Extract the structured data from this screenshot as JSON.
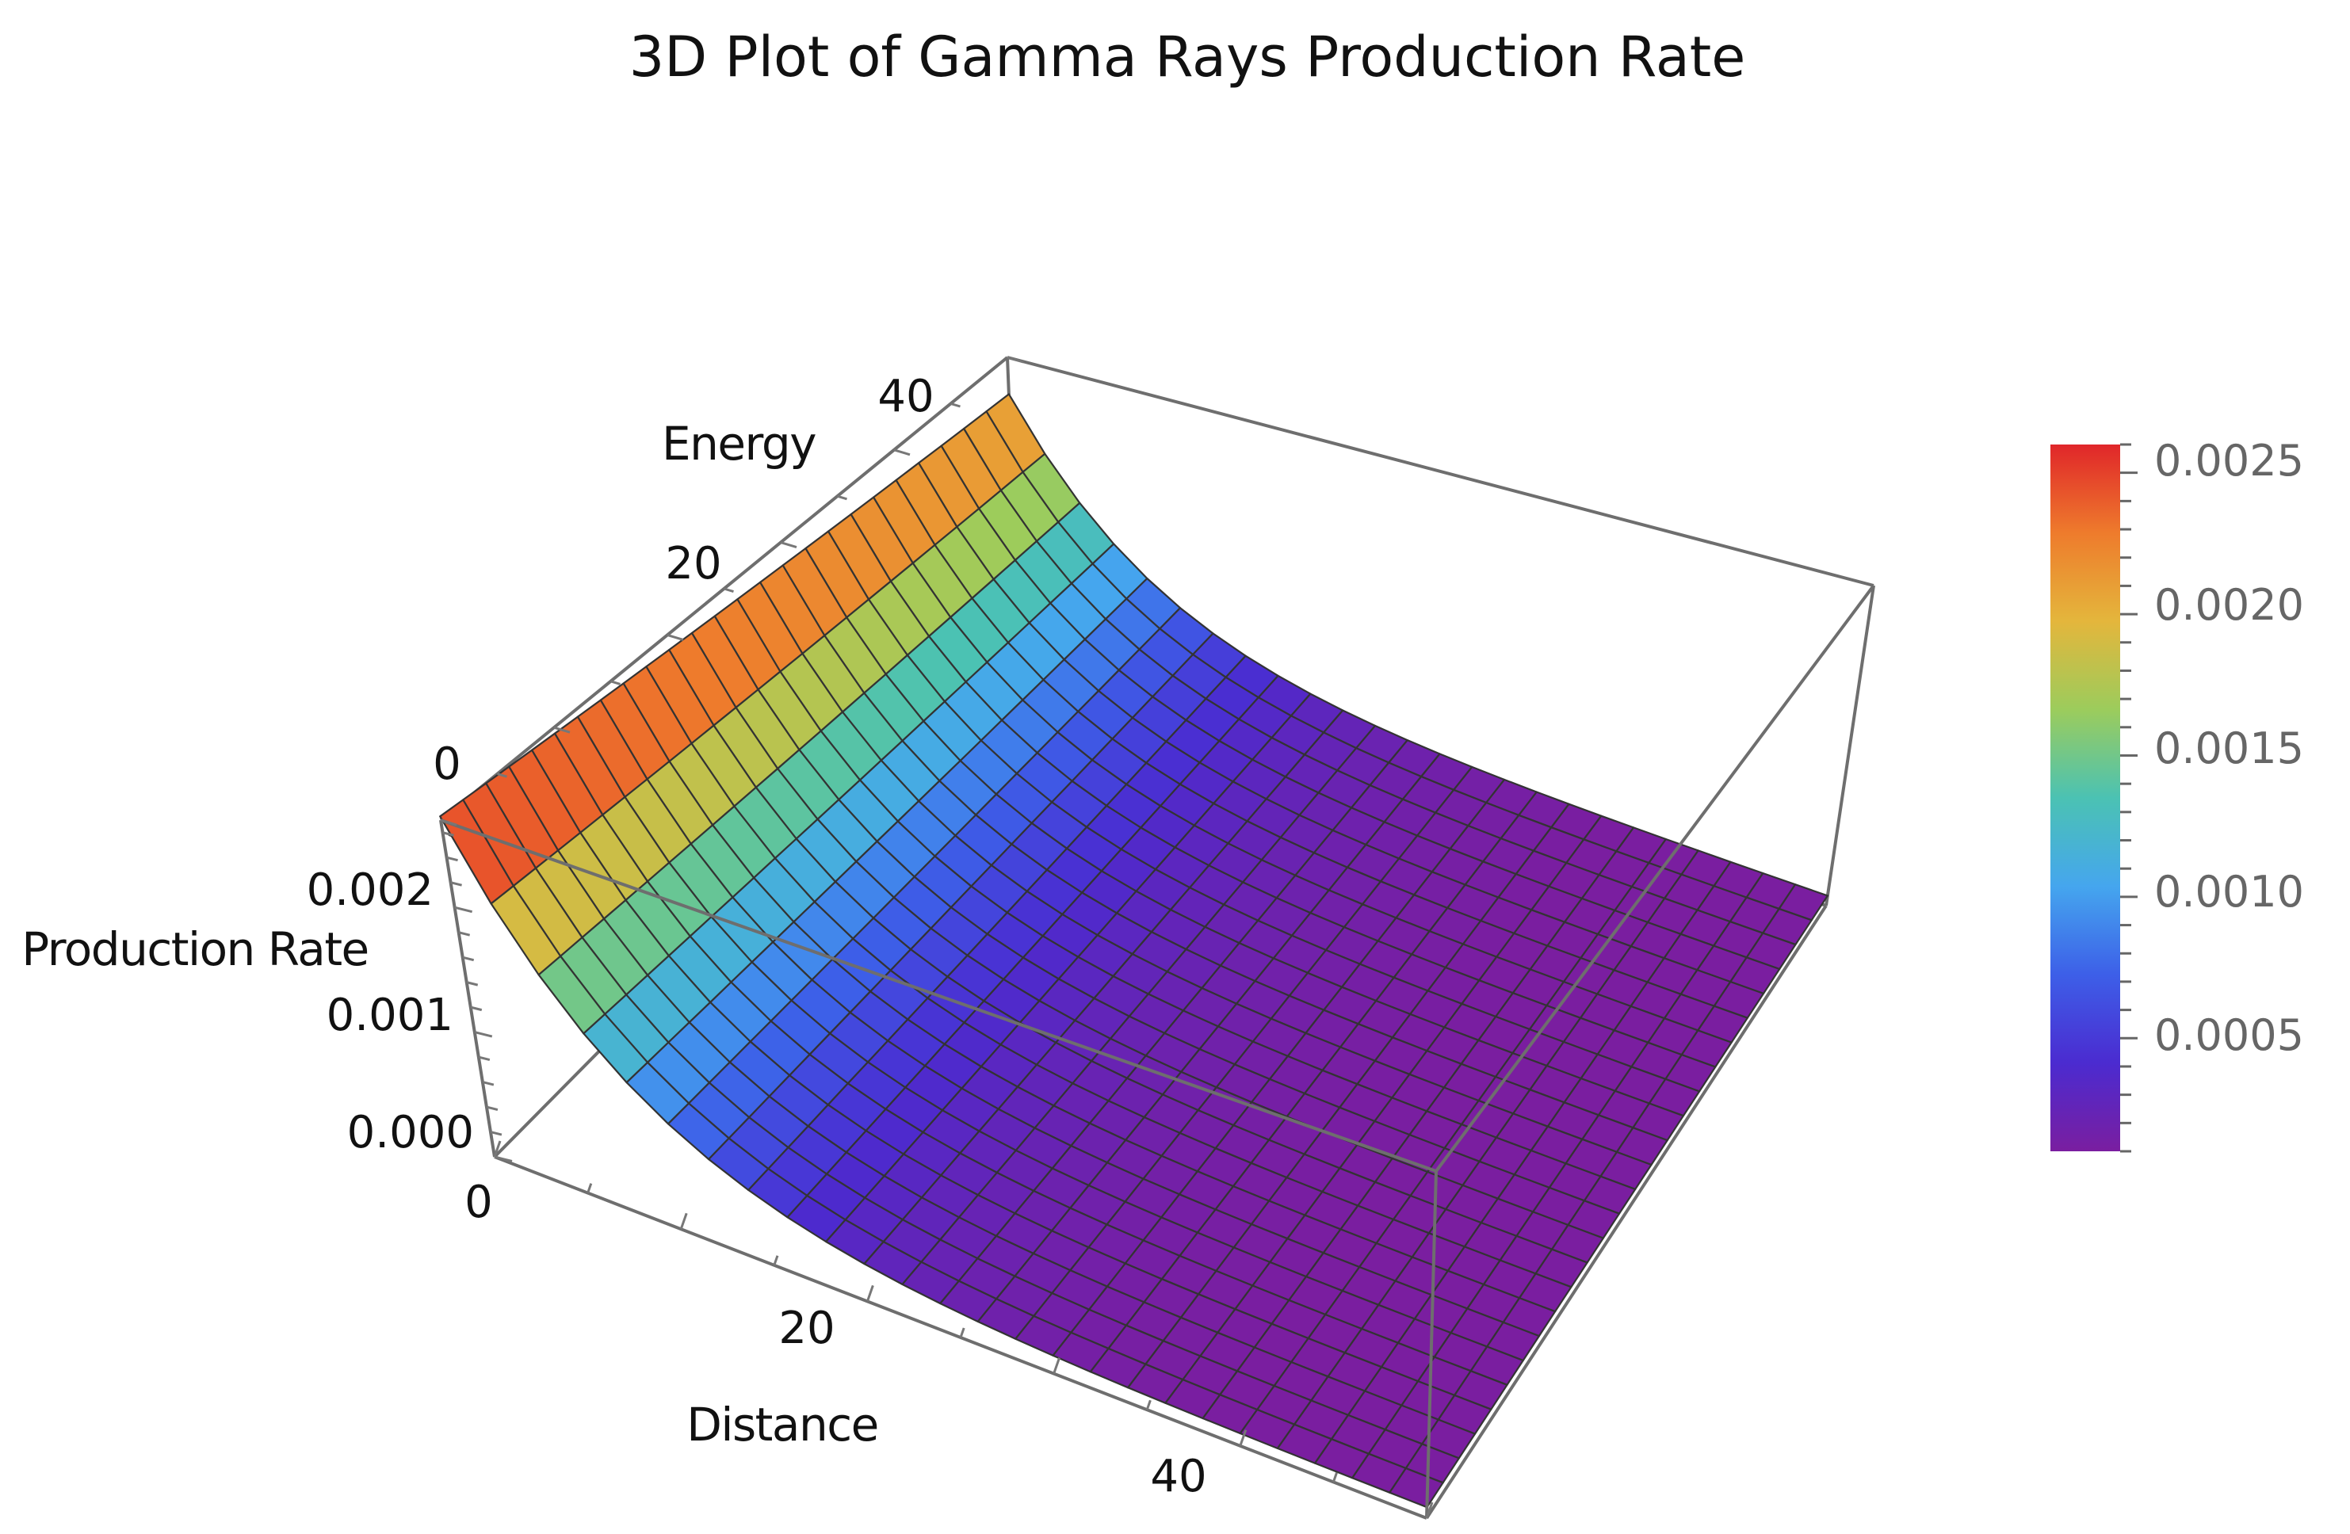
{
  "chart_data": {
    "type": "surface3d",
    "title": "3D Plot of Gamma Rays Production Rate",
    "xlabel": "Distance",
    "ylabel": "Energy",
    "zlabel": "Production Rate",
    "xlim": [
      0,
      50
    ],
    "ylim": [
      0,
      50
    ],
    "zlim": [
      0,
      0.0027
    ],
    "x_ticks": [
      "0",
      "20",
      "40"
    ],
    "y_ticks": [
      "0",
      "20",
      "40"
    ],
    "z_ticks": [
      "0.000",
      "0.001",
      "0.002"
    ],
    "surface": {
      "peak_rate": 0.00265,
      "decay_length_distance": 8.0,
      "energy_dependence": "weak",
      "mesh_lines": 25
    },
    "colorbar": {
      "range": [
        0.0001,
        0.0026
      ],
      "tick_labels": [
        "0.0025",
        "0.0020",
        "0.0015",
        "0.0010",
        "0.0005"
      ],
      "tick_values": [
        0.0025,
        0.002,
        0.0015,
        0.001,
        0.0005
      ],
      "colors": [
        "#7a1ea0",
        "#4b2bd0",
        "#3d5fe8",
        "#45a6ee",
        "#4bc2b3",
        "#9ccc5c",
        "#e4b63c",
        "#ee7b2c",
        "#e0262a"
      ]
    },
    "grid": false,
    "legend": "colorbar-right"
  }
}
